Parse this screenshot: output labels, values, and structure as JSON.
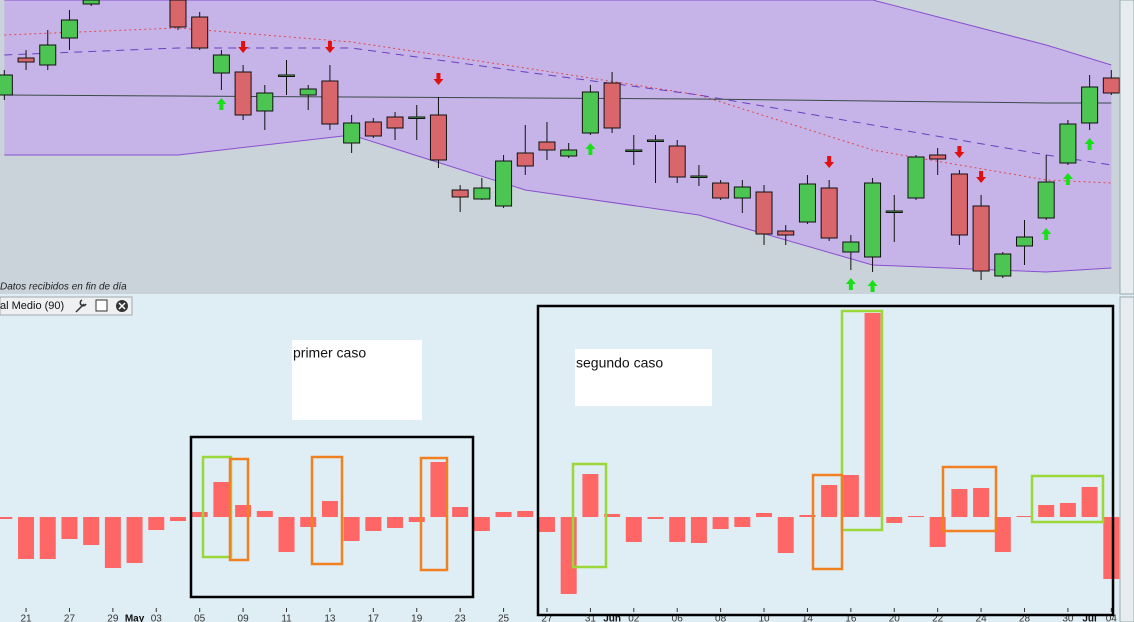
{
  "chart_data": [
    {
      "type": "candlestick",
      "annotation": "Datos recibidos en fin de día",
      "xlim": [
        -0.2,
        51.4
      ],
      "ylim": [
        0,
        292
      ],
      "up_color": "#4cc552",
      "down_color": "#d9666a",
      "band_color": "#c6b4e8",
      "background": "#cad3d9",
      "candles": {
        "x": [
          0,
          1,
          2,
          3,
          4,
          8,
          9,
          10,
          11,
          12,
          13,
          14,
          15,
          16,
          17,
          18,
          19,
          20,
          21,
          22,
          23,
          24,
          25,
          26,
          27,
          28,
          29,
          30,
          31,
          32,
          33,
          34,
          35,
          36,
          37,
          38,
          39,
          40,
          41,
          42,
          43,
          44,
          45,
          46,
          47,
          48,
          49,
          50,
          51
        ],
        "open": [
          197,
          234,
          227,
          254,
          288,
          292,
          275,
          219,
          220,
          181,
          217,
          197,
          211,
          149,
          170,
          175,
          175,
          177,
          102,
          93,
          86,
          139,
          150,
          136,
          159,
          209,
          142,
          152,
          146,
          116,
          109,
          94,
          100,
          61,
          70,
          104,
          40,
          35,
          81,
          94,
          137,
          118,
          86,
          16,
          46,
          74,
          129,
          169,
          214
        ],
        "high": [
          222,
          242,
          262,
          282,
          292,
          292,
          280,
          242,
          227,
          207,
          232,
          207,
          227,
          177,
          174,
          180,
          187,
          195,
          107,
          114,
          137,
          167,
          170,
          149,
          207,
          220,
          157,
          157,
          152,
          127,
          112,
          112,
          107,
          67,
          117,
          112,
          57,
          114,
          97,
          137,
          144,
          122,
          97,
          40,
          72,
          137,
          172,
          217,
          222
        ],
        "low": [
          192,
          222,
          222,
          242,
          286,
          262,
          242,
          202,
          172,
          162,
          197,
          182,
          162,
          139,
          154,
          152,
          152,
          124,
          80,
          92,
          84,
          117,
          132,
          134,
          157,
          159,
          127,
          109,
          109,
          106,
          92,
          79,
          47,
          47,
          68,
          51,
          22,
          20,
          50,
          92,
          117,
          47,
          12,
          14,
          27,
          72,
          127,
          162,
          197
        ],
        "close": [
          217,
          230,
          247,
          272,
          292,
          265,
          244,
          237,
          177,
          199,
          217,
          203,
          168,
          169,
          156,
          164,
          175,
          132,
          95,
          104,
          131,
          126,
          142,
          142,
          200,
          164,
          142,
          152,
          115,
          116,
          94,
          105,
          58,
          57,
          108,
          54,
          50,
          109,
          81,
          135,
          133,
          57,
          21,
          38,
          55,
          110,
          168,
          205,
          199
        ]
      },
      "overlays": {
        "x": [
          0,
          8,
          16,
          24,
          32,
          40,
          48,
          51
        ],
        "series": [
          {
            "color": "#8a4fd0",
            "style": "solid",
            "values": [
              292,
              292,
              292,
              292,
              292,
              292,
              247,
              227
            ]
          },
          {
            "color": "#8a4fd0",
            "style": "solid",
            "values": [
              137,
              137,
              157,
              102,
              77,
              27,
              20,
              24
            ]
          },
          {
            "color": "#e04848",
            "style": "dotted",
            "values": [
              257,
              264,
              250,
              224,
              197,
              142,
              112,
              109
            ]
          },
          {
            "color": "#6a3fc0",
            "style": "dashed",
            "values": [
              237,
              244,
              244,
              220,
              197,
              167,
              137,
              127
            ]
          },
          {
            "color": "#3a4a4a",
            "style": "solid",
            "values": [
              197,
              196,
              195,
              194,
              193,
              191,
              189,
              189
            ]
          }
        ]
      },
      "down_signals": {
        "color": "#e01010",
        "x": [
          11,
          15,
          20,
          38,
          44,
          45
        ]
      },
      "up_signals": {
        "color": "#18e018",
        "x": [
          10,
          27,
          39,
          40,
          48,
          49,
          50
        ]
      }
    },
    {
      "type": "bar",
      "title": "al Medio (90)",
      "color": "#ff6666",
      "xlim": [
        -0.2,
        51.4
      ],
      "ylim": [
        -88,
        207
      ],
      "values": [
        -2,
        -42,
        -42,
        -22,
        -28,
        -51,
        -46,
        -13,
        -4,
        5,
        35,
        12,
        6,
        -35,
        -10,
        16,
        -24,
        -14,
        -11,
        -5,
        55,
        10,
        -14,
        5,
        6,
        -15,
        -77,
        43,
        3,
        -25,
        -2,
        -25,
        -26,
        -12,
        -10,
        4,
        -36,
        2,
        32,
        42,
        204,
        -6,
        1,
        -30,
        28,
        29,
        -35,
        1,
        12,
        14,
        30,
        -62
      ],
      "xticks": [
        {
          "value": 1,
          "label": "21"
        },
        {
          "value": 3,
          "label": "27"
        },
        {
          "value": 5,
          "label": "29"
        },
        {
          "value": 7,
          "label": "03"
        },
        {
          "value": 9,
          "label": "05"
        },
        {
          "value": 11,
          "label": "09"
        },
        {
          "value": 13,
          "label": "11"
        },
        {
          "value": 15,
          "label": "13"
        },
        {
          "value": 17,
          "label": "17"
        },
        {
          "value": 19,
          "label": "19"
        },
        {
          "value": 21,
          "label": "23"
        },
        {
          "value": 23,
          "label": "25"
        },
        {
          "value": 25,
          "label": "27"
        },
        {
          "value": 27,
          "label": "31"
        },
        {
          "value": 29,
          "label": "02"
        },
        {
          "value": 31,
          "label": "06"
        },
        {
          "value": 33,
          "label": "08"
        },
        {
          "value": 35,
          "label": "10"
        },
        {
          "value": 37,
          "label": "14"
        },
        {
          "value": 39,
          "label": "16"
        },
        {
          "value": 41,
          "label": "20"
        },
        {
          "value": 43,
          "label": "22"
        },
        {
          "value": 45,
          "label": "24"
        },
        {
          "value": 47,
          "label": "28"
        },
        {
          "value": 49,
          "label": "30"
        },
        {
          "value": 51,
          "label": "04"
        }
      ],
      "month_ticks": [
        {
          "value": 6,
          "label": "May"
        },
        {
          "value": 28,
          "label": "Jun"
        },
        {
          "value": 50,
          "label": "Jul"
        }
      ],
      "annotations": [
        "primer caso",
        "segundo caso"
      ]
    }
  ]
}
